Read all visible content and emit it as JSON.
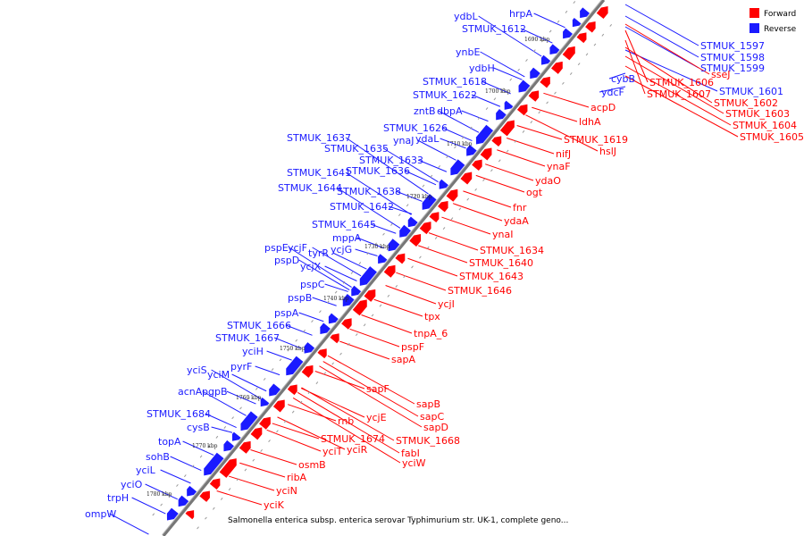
{
  "caption": "Salmonella enterica subsp. enterica serovar Typhimurium str. UK-1, complete geno...",
  "colors": {
    "forward": "#ff0000",
    "reverse": "#1a1aff",
    "backbone": "#777777"
  },
  "legend": [
    {
      "label": "Forward",
      "color": "#ff0000"
    },
    {
      "label": "Reverse",
      "color": "#1a1aff"
    }
  ],
  "kbp_marks": [
    "1690 kbp",
    "1700 kbp",
    "1710 kbp",
    "1720 kbp",
    "1730 kbp",
    "1740 kbp",
    "1750 kbp",
    "1760 kbp",
    "1770 kbp",
    "1780 kbp"
  ],
  "reverse_labels": [
    "ydbL",
    "hrpA",
    "STMUK_1612",
    "ynbE",
    "ydbH",
    "STMUK_1618",
    "STMUK_1622",
    "zntB",
    "dbpA",
    "STMUK_1626",
    "ynaJ",
    "ydaL",
    "STMUK_1637",
    "STMUK_1635",
    "STMUK_1633",
    "STMUK_1641",
    "STMUK_1636",
    "STMUK_1644",
    "STMUK_1638",
    "STMUK_1642",
    "STMUK_1645",
    "mppA",
    "pspE",
    "ycjF",
    "tyrR",
    "pspD",
    "ycjG",
    "ycjX",
    "pspC",
    "pspB",
    "pspA",
    "STMUK_1666",
    "STMUK_1667",
    "yciH",
    "yciS",
    "pyrF",
    "yciM",
    "acnA",
    "pgpB",
    "STMUK_1684",
    "cysB",
    "topA",
    "sohB",
    "yciL",
    "yciO",
    "trpH",
    "ompW",
    "STMUK_1597",
    "STMUK_1598",
    "STMUK_1599",
    "cybB",
    "ydcF",
    "STMUK_1601"
  ],
  "forward_labels": [
    "sseJ",
    "STMUK_1606",
    "STMUK_1607",
    "STMUK_1602",
    "STMUK_1603",
    "STMUK_1604",
    "STMUK_1605",
    "acpD",
    "ldhA",
    "STMUK_1619",
    "hslJ",
    "nifJ",
    "ynaF",
    "ydaO",
    "ogt",
    "fnr",
    "ydaA",
    "ynaI",
    "STMUK_1634",
    "STMUK_1640",
    "STMUK_1643",
    "STMUK_1646",
    "ycjI",
    "tpx",
    "tnpA_6",
    "pspF",
    "sapA",
    "sapF",
    "sapB",
    "sapC",
    "sapD",
    "ycjE",
    "rnb",
    "STMUK_1668",
    "STMUK_1674",
    "fabI",
    "yciT",
    "yciR",
    "yciW",
    "ribA",
    "osmB",
    "yciN",
    "yciK"
  ]
}
